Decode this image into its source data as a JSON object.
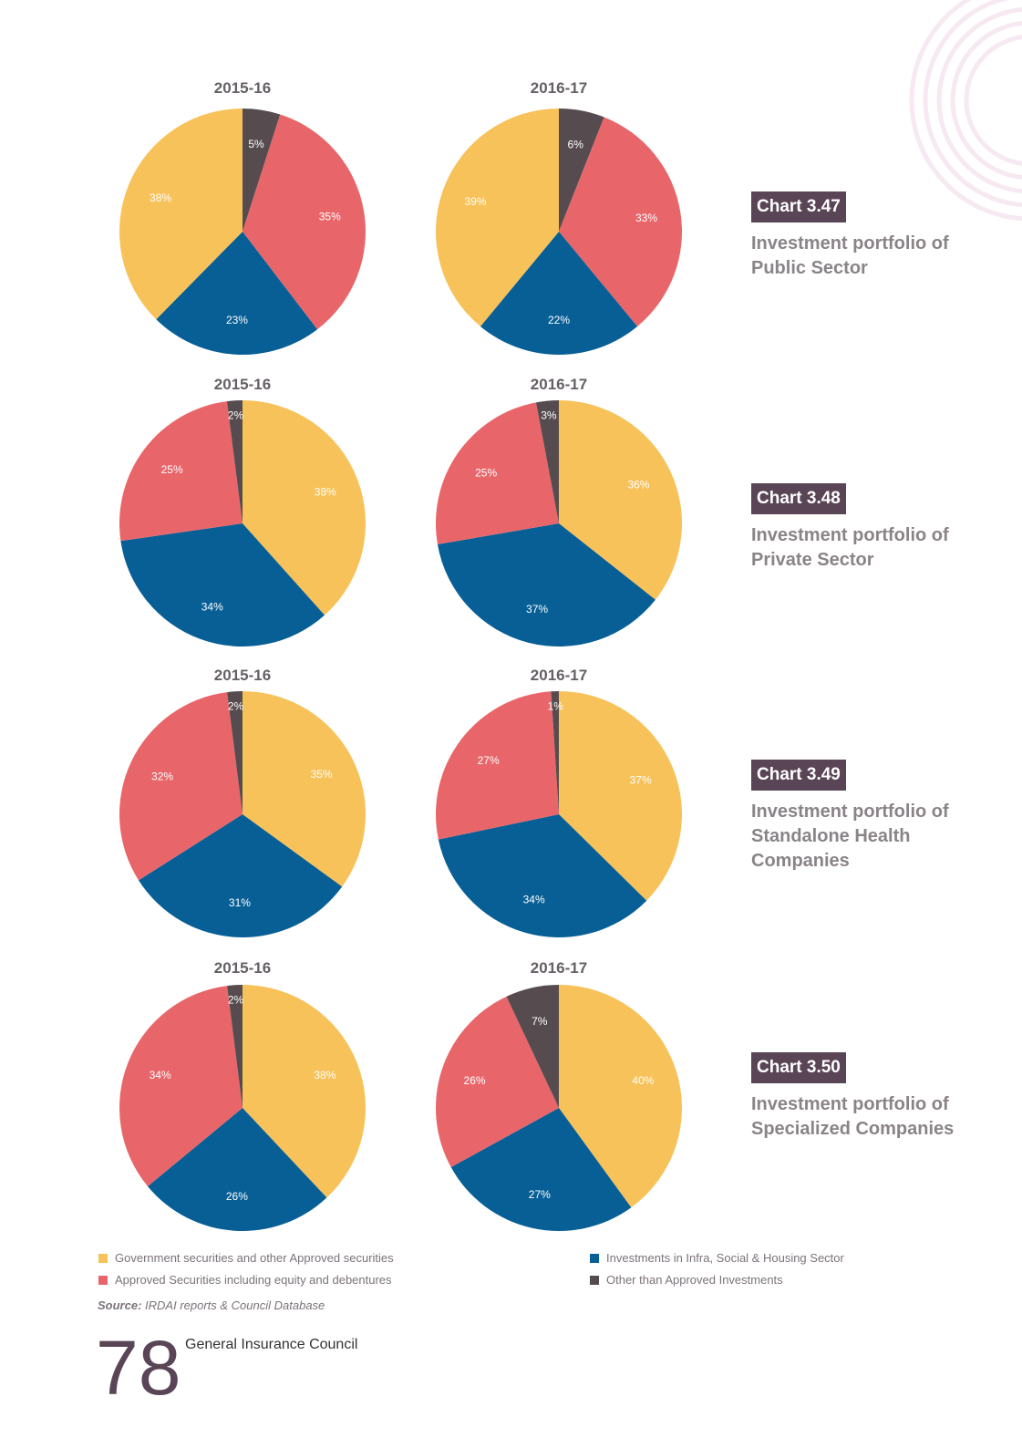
{
  "colors": {
    "govt": "#f7c25a",
    "approved": "#e8666a",
    "infra": "#075f96",
    "other": "#564c4f"
  },
  "chart_data": [
    {
      "type": "pie",
      "id": "3.47",
      "badge": "Chart 3.47",
      "title": "Investment portfolio of Public Sector",
      "pies": [
        {
          "year": "2015-16",
          "slices": [
            {
              "category": "Government securities and other Approved securities",
              "value": 38,
              "label": "38%"
            },
            {
              "category": "Investments in Infra, Social & Housing Sector",
              "value": 23,
              "label": "23%"
            },
            {
              "category": "Approved Securities including equity and debentures",
              "value": 35,
              "label": "35%"
            },
            {
              "category": "Other than Approved Investments",
              "value": 5,
              "label": "5%"
            }
          ]
        },
        {
          "year": "2016-17",
          "slices": [
            {
              "category": "Government securities and other Approved securities",
              "value": 39,
              "label": "39%"
            },
            {
              "category": "Investments in Infra, Social & Housing Sector",
              "value": 22,
              "label": "22%"
            },
            {
              "category": "Approved Securities including equity and debentures",
              "value": 33,
              "label": "33%"
            },
            {
              "category": "Other than Approved Investments",
              "value": 6,
              "label": "6%"
            }
          ]
        }
      ]
    },
    {
      "type": "pie",
      "id": "3.48",
      "badge": "Chart 3.48",
      "title": "Investment portfolio of Private Sector",
      "pies": [
        {
          "year": "2015-16",
          "slices": [
            {
              "category": "Government securities and other Approved securities",
              "value": 38,
              "label": "38%"
            },
            {
              "category": "Investments in Infra, Social & Housing Sector",
              "value": 34,
              "label": "34%"
            },
            {
              "category": "Approved Securities including equity and debentures",
              "value": 25,
              "label": "25%"
            },
            {
              "category": "Other than Approved Investments",
              "value": 2,
              "label": "2%"
            }
          ]
        },
        {
          "year": "2016-17",
          "slices": [
            {
              "category": "Government securities and other Approved securities",
              "value": 36,
              "label": "36%"
            },
            {
              "category": "Investments in Infra, Social & Housing Sector",
              "value": 37,
              "label": "37%"
            },
            {
              "category": "Approved Securities including equity and debentures",
              "value": 25,
              "label": "25%"
            },
            {
              "category": "Other than Approved Investments",
              "value": 3,
              "label": "3%"
            }
          ]
        }
      ]
    },
    {
      "type": "pie",
      "id": "3.49",
      "badge": "Chart 3.49",
      "title": "Investment portfolio of Standalone Health Companies",
      "pies": [
        {
          "year": "2015-16",
          "slices": [
            {
              "category": "Government securities and other Approved securities",
              "value": 35,
              "label": "35%"
            },
            {
              "category": "Investments in Infra, Social & Housing Sector",
              "value": 31,
              "label": "31%"
            },
            {
              "category": "Approved Securities including equity and debentures",
              "value": 32,
              "label": "32%"
            },
            {
              "category": "Other than Approved Investments",
              "value": 2,
              "label": "2%"
            }
          ]
        },
        {
          "year": "2016-17",
          "slices": [
            {
              "category": "Government securities and other Approved securities",
              "value": 37,
              "label": "37%"
            },
            {
              "category": "Investments in Infra, Social & Housing Sector",
              "value": 34,
              "label": "34%"
            },
            {
              "category": "Approved Securities including equity and debentures",
              "value": 27,
              "label": "27%"
            },
            {
              "category": "Other than Approved Investments",
              "value": 1,
              "label": "1%"
            }
          ]
        }
      ]
    },
    {
      "type": "pie",
      "id": "3.50",
      "badge": "Chart 3.50",
      "title": "Investment portfolio of Specialized Companies",
      "pies": [
        {
          "year": "2015-16",
          "slices": [
            {
              "category": "Government securities and other Approved securities",
              "value": 38,
              "label": "38%"
            },
            {
              "category": "Investments in Infra, Social & Housing Sector",
              "value": 26,
              "label": "26%"
            },
            {
              "category": "Approved Securities including equity and debentures",
              "value": 34,
              "label": "34%"
            },
            {
              "category": "Other than Approved Investments",
              "value": 2,
              "label": "2%"
            }
          ]
        },
        {
          "year": "2016-17",
          "slices": [
            {
              "category": "Government securities and other Approved securities",
              "value": 40,
              "label": "40%"
            },
            {
              "category": "Investments in Infra, Social & Housing Sector",
              "value": 27,
              "label": "27%"
            },
            {
              "category": "Approved Securities including equity and debentures",
              "value": 26,
              "label": "26%"
            },
            {
              "category": "Other than Approved Investments",
              "value": 7,
              "label": "7%"
            }
          ]
        }
      ]
    }
  ],
  "legend": [
    {
      "label": "Government securities and other Approved securities",
      "color": "#f7c25a"
    },
    {
      "label": "Approved Securities including equity and debentures",
      "color": "#e8666a"
    },
    {
      "label": "Investments in Infra, Social & Housing Sector",
      "color": "#075f96"
    },
    {
      "label": "Other than Approved Investments",
      "color": "#564c4f"
    }
  ],
  "source": {
    "prefix": "Source:",
    "text": "IRDAI reports & Council Database"
  },
  "footer": {
    "page_number": "78",
    "publisher": "General Insurance Council"
  }
}
